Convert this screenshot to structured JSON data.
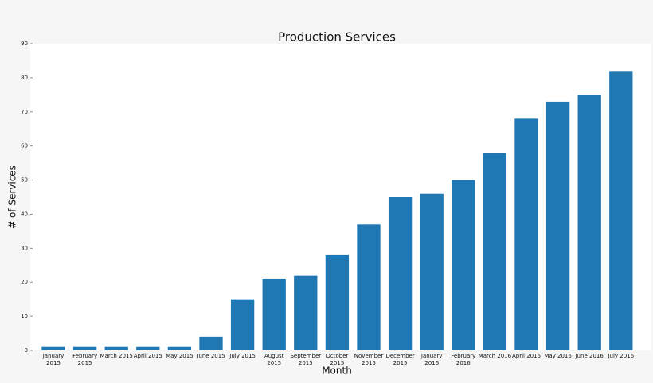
{
  "chart_data": {
    "type": "bar",
    "title": "Production Services",
    "x_label": "Month",
    "y_label": "# of Services",
    "categories": [
      "January 2015",
      "February 2015",
      "March 2015",
      "April 2015",
      "May 2015",
      "June 2015",
      "July 2015",
      "August 2015",
      "September 2015",
      "October 2015",
      "November 2015",
      "December 2015",
      "January 2016",
      "February 2016",
      "March 2016",
      "April 2016",
      "May 2016",
      "June 2016",
      "July 2016"
    ],
    "values": [
      1,
      1,
      1,
      1,
      1,
      4,
      15,
      21,
      22,
      28,
      37,
      45,
      46,
      50,
      58,
      68,
      73,
      75,
      82
    ],
    "color": "#1f77b4",
    "ylim": [
      0,
      90
    ],
    "yticks": [
      0,
      10,
      20,
      30,
      40,
      50,
      60,
      70,
      80,
      90
    ],
    "grid": false
  }
}
